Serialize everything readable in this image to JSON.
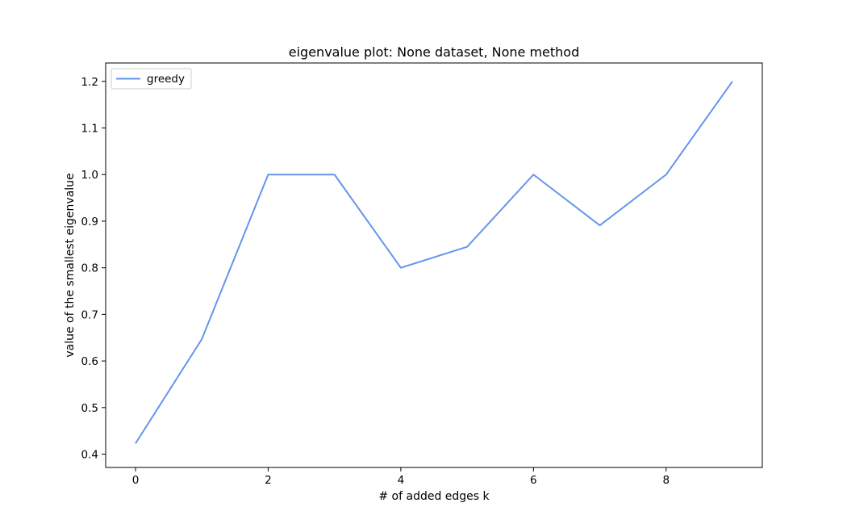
{
  "chart_data": {
    "type": "line",
    "title": "eigenvalue plot: None dataset, None method",
    "xlabel": "# of added edges k",
    "ylabel": "value of the smallest eigenvalue",
    "xlim": [
      -0.45,
      9.45
    ],
    "ylim": [
      0.3715,
      1.2395
    ],
    "xticks": [
      0,
      2,
      4,
      6,
      8
    ],
    "xtick_labels": [
      "0",
      "2",
      "4",
      "6",
      "8"
    ],
    "yticks": [
      0.4,
      0.5,
      0.6,
      0.7,
      0.8,
      0.9,
      1.0,
      1.1,
      1.2
    ],
    "ytick_labels": [
      "0.4",
      "0.5",
      "0.6",
      "0.7",
      "0.8",
      "0.9",
      "1.0",
      "1.1",
      "1.2"
    ],
    "grid": false,
    "legend_position": "top-left",
    "series": [
      {
        "name": "greedy",
        "color": "#6495ed",
        "x": [
          0,
          1,
          2,
          3,
          4,
          5,
          6,
          7,
          8,
          9
        ],
        "y": [
          0.423,
          0.647,
          1.0,
          1.0,
          0.8,
          0.845,
          1.0,
          0.891,
          1.0,
          1.2
        ]
      }
    ]
  }
}
